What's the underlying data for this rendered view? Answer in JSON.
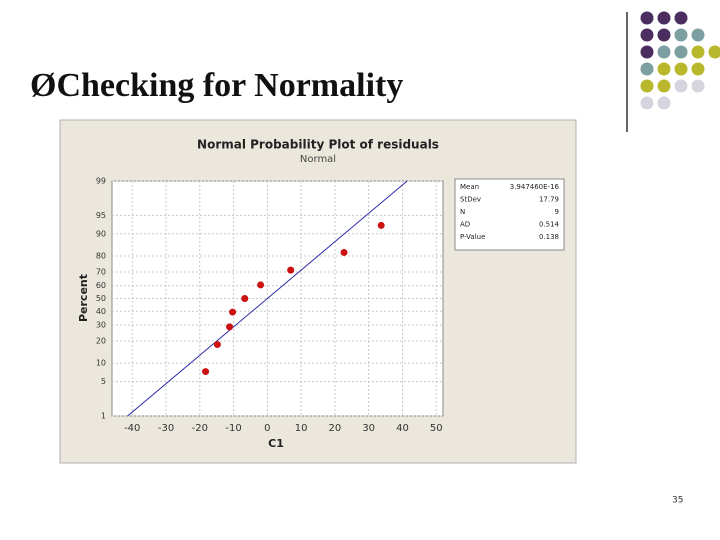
{
  "slide": {
    "bullet": "Ø",
    "title": "Checking for Normality",
    "page_number": 35
  },
  "chart_data": {
    "type": "scatter",
    "title": "Normal Probability Plot of residuals",
    "subtitle": "Normal",
    "x_label": "C1",
    "y_label": "Percent",
    "yscale": "probability",
    "grid": true,
    "color": "#cc1111",
    "line_color": "#2a2aa8",
    "x": [
      -18.3,
      -14.8,
      -11.2,
      -10.3,
      -6.7,
      -2.0,
      6.9,
      22.7,
      33.7
    ],
    "values": [
      7.4,
      18.1,
      28.7,
      39.4,
      50,
      60.6,
      71.3,
      81.9,
      92.6
    ],
    "xlim": [
      -46,
      52
    ],
    "xticks": [
      -40,
      -30,
      -20,
      -10,
      0,
      10,
      20,
      30,
      40,
      50
    ],
    "ylim": [
      1,
      99
    ],
    "yticks": [
      1,
      5,
      10,
      20,
      30,
      40,
      50,
      60,
      70,
      80,
      90,
      95,
      99
    ],
    "stats": [
      {
        "label": "Mean",
        "value": 3.94746e-16,
        "value_label": "3.947460E-16"
      },
      {
        "label": "StDev",
        "value": 17.79
      },
      {
        "label": "N",
        "value": 9
      },
      {
        "label": "AD",
        "value": 0.514
      },
      {
        "label": "P-Value",
        "value": 0.138
      }
    ]
  }
}
